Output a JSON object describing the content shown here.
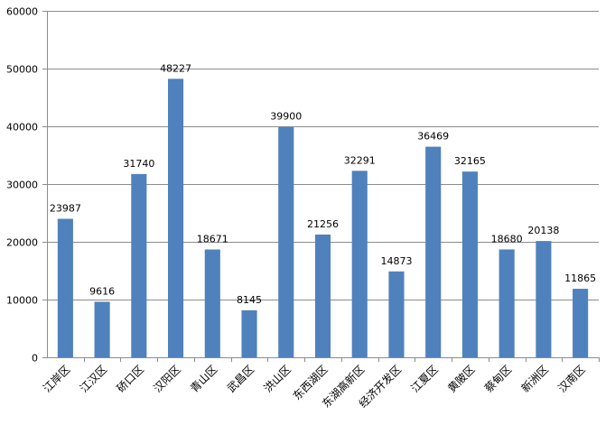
{
  "chart_data": {
    "type": "bar",
    "title": "",
    "xlabel": "",
    "ylabel": "",
    "ylim": [
      0,
      60000
    ],
    "yticks": [
      0,
      10000,
      20000,
      30000,
      40000,
      50000,
      60000
    ],
    "grid": true,
    "legend": "none",
    "bar_color": "#4f81bd",
    "categories": [
      "江岸区",
      "江汉区",
      "硚口区",
      "汉阳区",
      "青山区",
      "武昌区",
      "洪山区",
      "东西湖区",
      "东湖高新区",
      "经济开发区",
      "江夏区",
      "黄陂区",
      "蔡甸区",
      "新洲区",
      "汉南区"
    ],
    "values": [
      23987,
      9616,
      31740,
      48227,
      18671,
      8145,
      39900,
      21256,
      32291,
      14873,
      36469,
      32165,
      18680,
      20138,
      11865
    ]
  }
}
